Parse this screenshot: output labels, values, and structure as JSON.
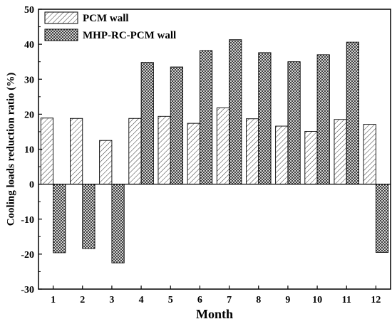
{
  "chart_data": {
    "type": "bar",
    "title": "",
    "xlabel": "Month",
    "ylabel": "Cooling loads reduction ratio (%)",
    "categories": [
      "1",
      "2",
      "3",
      "4",
      "5",
      "6",
      "7",
      "8",
      "9",
      "10",
      "11",
      "12"
    ],
    "ylim": [
      -30,
      50
    ],
    "yticks": [
      -30,
      -20,
      -10,
      0,
      10,
      20,
      30,
      40,
      50
    ],
    "yticklabels": [
      "-30",
      "-20",
      "-10",
      "0",
      "10",
      "20",
      "30",
      "40",
      "50"
    ],
    "grid": false,
    "legend_position": "top-left",
    "series": [
      {
        "name": "PCM wall",
        "pattern": "diagonal-hatch",
        "values": [
          18.9,
          18.8,
          12.5,
          18.8,
          19.4,
          17.4,
          21.8,
          18.7,
          16.6,
          15.1,
          18.5,
          17.1
        ]
      },
      {
        "name": "MHP-RC-PCM wall",
        "pattern": "crosshatch",
        "values": [
          -19.6,
          -18.4,
          -22.5,
          34.8,
          33.5,
          38.2,
          41.3,
          37.6,
          35.0,
          37.0,
          40.6,
          -19.5
        ]
      }
    ]
  }
}
